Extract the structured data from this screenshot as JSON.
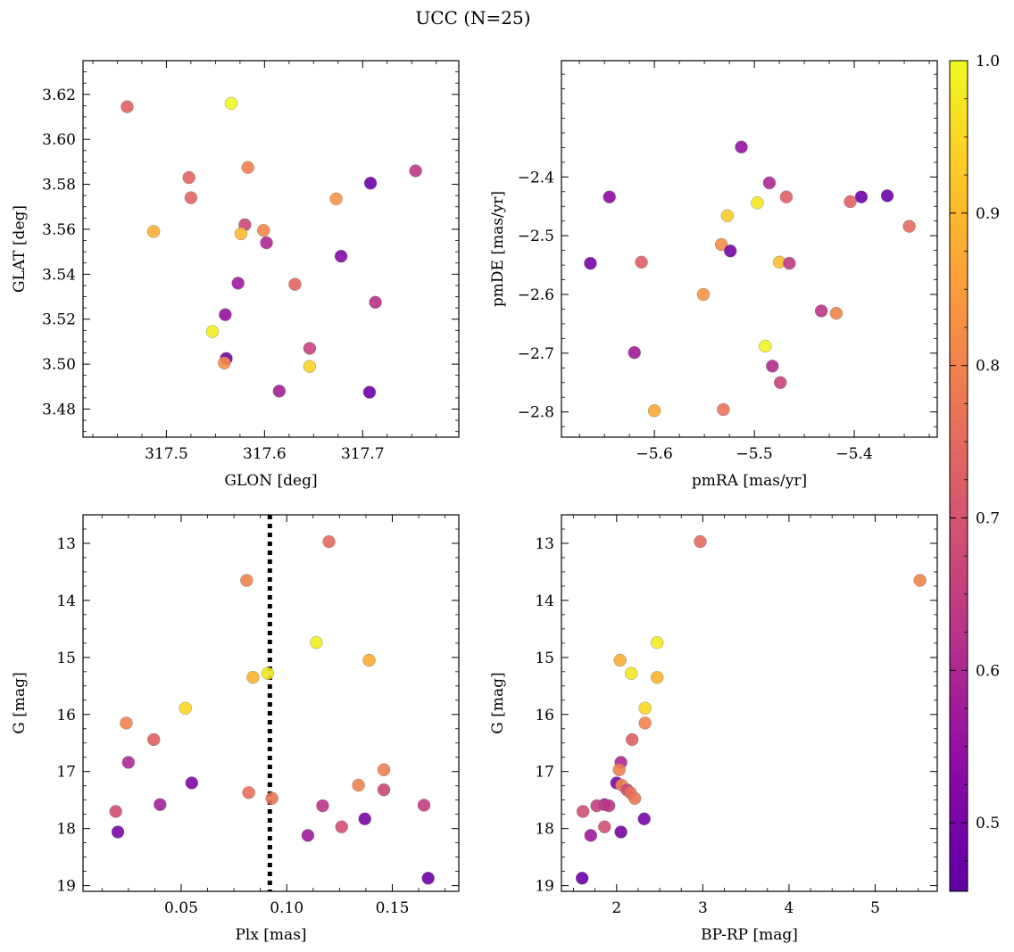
{
  "figure": {
    "title": "UCC (N=25)"
  },
  "colorbar": {
    "min": 0.455,
    "max": 1.0,
    "colormap": "plasma",
    "ticks": [
      "0.5",
      "0.6",
      "0.7",
      "0.8",
      "0.9",
      "1.0"
    ]
  },
  "chart_data": [
    {
      "type": "scatter",
      "panel": "top-left",
      "xlabel": "GLON [deg]",
      "ylabel": "GLAT [deg]",
      "xlim": [
        317.415,
        317.798
      ],
      "ylim": [
        3.4675,
        3.635
      ],
      "xticks": [
        "317.5",
        "317.6",
        "317.7"
      ],
      "xtick_values": [
        317.5,
        317.6,
        317.7
      ],
      "yticks": [
        "3.48",
        "3.50",
        "3.52",
        "3.54",
        "3.56",
        "3.58",
        "3.60",
        "3.62"
      ],
      "ytick_values": [
        3.48,
        3.5,
        3.52,
        3.54,
        3.56,
        3.58,
        3.6,
        3.62
      ],
      "points": [
        {
          "x": 317.46,
          "y": 3.6145,
          "c": 0.73
        },
        {
          "x": 317.566,
          "y": 3.616,
          "c": 1.0
        },
        {
          "x": 317.523,
          "y": 3.583,
          "c": 0.74
        },
        {
          "x": 317.583,
          "y": 3.5875,
          "c": 0.79
        },
        {
          "x": 317.525,
          "y": 3.574,
          "c": 0.74
        },
        {
          "x": 317.708,
          "y": 3.5805,
          "c": 0.48
        },
        {
          "x": 317.754,
          "y": 3.586,
          "c": 0.64
        },
        {
          "x": 317.673,
          "y": 3.5735,
          "c": 0.83
        },
        {
          "x": 317.487,
          "y": 3.559,
          "c": 0.88
        },
        {
          "x": 317.58,
          "y": 3.562,
          "c": 0.67
        },
        {
          "x": 317.576,
          "y": 3.558,
          "c": 0.9
        },
        {
          "x": 317.599,
          "y": 3.5595,
          "c": 0.81
        },
        {
          "x": 317.602,
          "y": 3.554,
          "c": 0.6
        },
        {
          "x": 317.678,
          "y": 3.548,
          "c": 0.52
        },
        {
          "x": 317.573,
          "y": 3.536,
          "c": 0.57
        },
        {
          "x": 317.631,
          "y": 3.5355,
          "c": 0.74
        },
        {
          "x": 317.713,
          "y": 3.5275,
          "c": 0.62
        },
        {
          "x": 317.56,
          "y": 3.522,
          "c": 0.55
        },
        {
          "x": 317.547,
          "y": 3.5145,
          "c": 0.98
        },
        {
          "x": 317.646,
          "y": 3.507,
          "c": 0.66
        },
        {
          "x": 317.561,
          "y": 3.5025,
          "c": 0.49
        },
        {
          "x": 317.559,
          "y": 3.5005,
          "c": 0.82
        },
        {
          "x": 317.646,
          "y": 3.499,
          "c": 0.94
        },
        {
          "x": 317.615,
          "y": 3.488,
          "c": 0.58
        },
        {
          "x": 317.707,
          "y": 3.4875,
          "c": 0.48
        }
      ]
    },
    {
      "type": "scatter",
      "panel": "top-right",
      "xlabel": "pmRA [mas/yr]",
      "ylabel": "pmDE [mas/yr]",
      "xlim": [
        -5.693,
        -5.317
      ],
      "ylim": [
        -2.843,
        -2.202
      ],
      "xticks": [
        "−5.6",
        "−5.5",
        "−5.4"
      ],
      "xtick_values": [
        -5.6,
        -5.5,
        -5.4
      ],
      "yticks": [
        "−2.8",
        "−2.7",
        "−2.6",
        "−2.5",
        "−2.4"
      ],
      "ytick_values": [
        -2.8,
        -2.7,
        -2.6,
        -2.5,
        -2.4
      ],
      "points": [
        {
          "x": -5.513,
          "y": -2.349,
          "c": 0.55
        },
        {
          "x": -5.485,
          "y": -2.41,
          "c": 0.6
        },
        {
          "x": -5.645,
          "y": -2.434,
          "c": 0.53
        },
        {
          "x": -5.393,
          "y": -2.434,
          "c": 0.48
        },
        {
          "x": -5.367,
          "y": -2.432,
          "c": 0.48
        },
        {
          "x": -5.468,
          "y": -2.434,
          "c": 0.73
        },
        {
          "x": -5.404,
          "y": -2.442,
          "c": 0.73
        },
        {
          "x": -5.497,
          "y": -2.444,
          "c": 0.97
        },
        {
          "x": -5.527,
          "y": -2.466,
          "c": 0.93
        },
        {
          "x": -5.345,
          "y": -2.484,
          "c": 0.75
        },
        {
          "x": -5.533,
          "y": -2.515,
          "c": 0.82
        },
        {
          "x": -5.524,
          "y": -2.526,
          "c": 0.5
        },
        {
          "x": -5.664,
          "y": -2.547,
          "c": 0.5
        },
        {
          "x": -5.613,
          "y": -2.545,
          "c": 0.73
        },
        {
          "x": -5.475,
          "y": -2.545,
          "c": 0.91
        },
        {
          "x": -5.465,
          "y": -2.547,
          "c": 0.64
        },
        {
          "x": -5.551,
          "y": -2.6,
          "c": 0.83
        },
        {
          "x": -5.433,
          "y": -2.628,
          "c": 0.63
        },
        {
          "x": -5.418,
          "y": -2.632,
          "c": 0.8
        },
        {
          "x": -5.62,
          "y": -2.699,
          "c": 0.57
        },
        {
          "x": -5.489,
          "y": -2.688,
          "c": 0.99
        },
        {
          "x": -5.482,
          "y": -2.722,
          "c": 0.61
        },
        {
          "x": -5.474,
          "y": -2.75,
          "c": 0.66
        },
        {
          "x": -5.6,
          "y": -2.798,
          "c": 0.87
        },
        {
          "x": -5.531,
          "y": -2.796,
          "c": 0.77
        }
      ]
    },
    {
      "type": "scatter",
      "panel": "bottom-left",
      "xlabel": "Plx [mas]",
      "ylabel": "G [mag]",
      "xlim": [
        0.0035,
        0.1815
      ],
      "ylim": [
        19.1,
        12.5
      ],
      "inverted_y": true,
      "xticks": [
        "0.05",
        "0.10",
        "0.15"
      ],
      "xtick_values": [
        0.05,
        0.1,
        0.15
      ],
      "yticks": [
        "13",
        "14",
        "15",
        "16",
        "17",
        "18",
        "19"
      ],
      "ytick_values": [
        13,
        14,
        15,
        16,
        17,
        18,
        19
      ],
      "vline": {
        "x": 0.092,
        "style": "dotted",
        "color": "#000000"
      },
      "points": [
        {
          "x": 0.12,
          "y": 12.97,
          "c": 0.75
        },
        {
          "x": 0.081,
          "y": 13.65,
          "c": 0.8
        },
        {
          "x": 0.114,
          "y": 14.74,
          "c": 0.98
        },
        {
          "x": 0.139,
          "y": 15.05,
          "c": 0.88
        },
        {
          "x": 0.091,
          "y": 15.28,
          "c": 0.97
        },
        {
          "x": 0.084,
          "y": 15.35,
          "c": 0.89
        },
        {
          "x": 0.052,
          "y": 15.89,
          "c": 0.95
        },
        {
          "x": 0.024,
          "y": 16.15,
          "c": 0.8
        },
        {
          "x": 0.037,
          "y": 16.44,
          "c": 0.73
        },
        {
          "x": 0.025,
          "y": 16.84,
          "c": 0.6
        },
        {
          "x": 0.146,
          "y": 16.97,
          "c": 0.79
        },
        {
          "x": 0.055,
          "y": 17.2,
          "c": 0.51
        },
        {
          "x": 0.134,
          "y": 17.24,
          "c": 0.8
        },
        {
          "x": 0.146,
          "y": 17.32,
          "c": 0.67
        },
        {
          "x": 0.082,
          "y": 17.37,
          "c": 0.76
        },
        {
          "x": 0.093,
          "y": 17.47,
          "c": 0.77
        },
        {
          "x": 0.04,
          "y": 17.58,
          "c": 0.58
        },
        {
          "x": 0.117,
          "y": 17.6,
          "c": 0.63
        },
        {
          "x": 0.165,
          "y": 17.59,
          "c": 0.65
        },
        {
          "x": 0.019,
          "y": 17.7,
          "c": 0.69
        },
        {
          "x": 0.137,
          "y": 17.83,
          "c": 0.5
        },
        {
          "x": 0.126,
          "y": 17.97,
          "c": 0.69
        },
        {
          "x": 0.02,
          "y": 18.06,
          "c": 0.5
        },
        {
          "x": 0.11,
          "y": 18.12,
          "c": 0.57
        },
        {
          "x": 0.167,
          "y": 18.87,
          "c": 0.48
        }
      ]
    },
    {
      "type": "scatter",
      "panel": "bottom-right",
      "xlabel": "BP-RP [mag]",
      "ylabel": "G [mag]",
      "xlim": [
        1.36,
        5.72
      ],
      "ylim": [
        19.1,
        12.5
      ],
      "inverted_y": true,
      "xticks": [
        "2",
        "3",
        "4",
        "5"
      ],
      "xtick_values": [
        2,
        3,
        4,
        5
      ],
      "yticks": [
        "13",
        "14",
        "15",
        "16",
        "17",
        "18",
        "19"
      ],
      "ytick_values": [
        13,
        14,
        15,
        16,
        17,
        18,
        19
      ],
      "points": [
        {
          "x": 2.97,
          "y": 12.97,
          "c": 0.75
        },
        {
          "x": 5.52,
          "y": 13.65,
          "c": 0.8
        },
        {
          "x": 2.47,
          "y": 14.74,
          "c": 0.98
        },
        {
          "x": 2.04,
          "y": 15.05,
          "c": 0.88
        },
        {
          "x": 2.17,
          "y": 15.28,
          "c": 0.97
        },
        {
          "x": 2.47,
          "y": 15.35,
          "c": 0.89
        },
        {
          "x": 2.33,
          "y": 15.89,
          "c": 0.95
        },
        {
          "x": 2.33,
          "y": 16.15,
          "c": 0.8
        },
        {
          "x": 2.18,
          "y": 16.44,
          "c": 0.73
        },
        {
          "x": 2.05,
          "y": 16.84,
          "c": 0.6
        },
        {
          "x": 2.03,
          "y": 16.97,
          "c": 0.79
        },
        {
          "x": 2.0,
          "y": 17.2,
          "c": 0.51
        },
        {
          "x": 2.06,
          "y": 17.24,
          "c": 0.8
        },
        {
          "x": 2.12,
          "y": 17.32,
          "c": 0.67
        },
        {
          "x": 2.16,
          "y": 17.37,
          "c": 0.76
        },
        {
          "x": 2.21,
          "y": 17.47,
          "c": 0.77
        },
        {
          "x": 1.86,
          "y": 17.58,
          "c": 0.58
        },
        {
          "x": 1.91,
          "y": 17.6,
          "c": 0.63
        },
        {
          "x": 1.77,
          "y": 17.6,
          "c": 0.65
        },
        {
          "x": 1.61,
          "y": 17.7,
          "c": 0.69
        },
        {
          "x": 2.32,
          "y": 17.83,
          "c": 0.5
        },
        {
          "x": 1.86,
          "y": 17.97,
          "c": 0.69
        },
        {
          "x": 2.05,
          "y": 18.06,
          "c": 0.5
        },
        {
          "x": 1.7,
          "y": 18.12,
          "c": 0.57
        },
        {
          "x": 1.6,
          "y": 18.87,
          "c": 0.48
        }
      ]
    }
  ]
}
